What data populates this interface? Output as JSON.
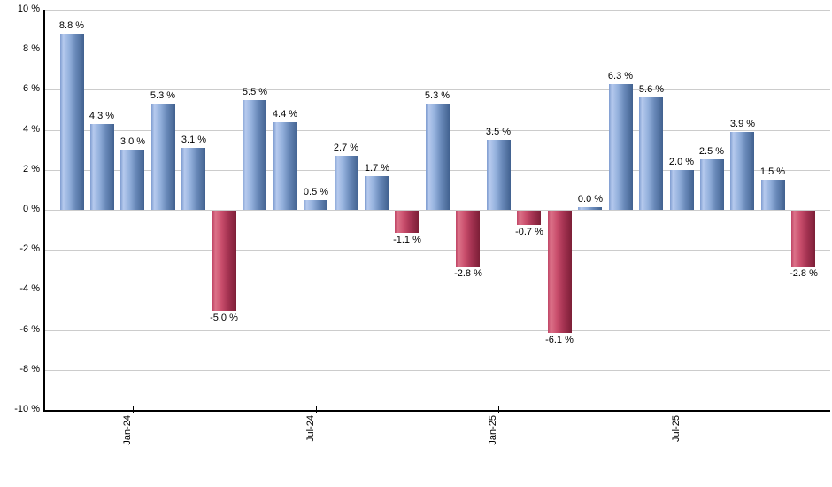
{
  "chart_data": {
    "type": "bar",
    "title": "",
    "xlabel": "",
    "ylabel": "",
    "ylim": [
      -10,
      10
    ],
    "y_tick_step": 2,
    "grid": true,
    "legend": false,
    "y_tick_labels": [
      "10 %",
      "8 %",
      "6 %",
      "4 %",
      "2 %",
      "0 %",
      "-2 %",
      "-4 %",
      "-6 %",
      "-8 %",
      "-10 %"
    ],
    "x_tick_labels": [
      {
        "label": "Jan-24",
        "bar_index": 2
      },
      {
        "label": "Jul-24",
        "bar_index": 8
      },
      {
        "label": "Jan-25",
        "bar_index": 14
      },
      {
        "label": "Jul-25",
        "bar_index": 20
      }
    ],
    "values": [
      8.8,
      4.3,
      3.0,
      5.3,
      3.1,
      -5.0,
      5.5,
      4.4,
      0.5,
      2.7,
      1.7,
      -1.1,
      5.3,
      -2.8,
      3.5,
      -0.7,
      -6.1,
      0.0,
      6.3,
      5.6,
      2.0,
      2.5,
      3.9,
      1.5,
      -2.8
    ],
    "bar_labels": [
      "8.8 %",
      "4.3 %",
      "3.0 %",
      "5.3 %",
      "3.1 %",
      "-5.0 %",
      "5.5 %",
      "4.4 %",
      "0.5 %",
      "2.7 %",
      "1.7 %",
      "-1.1 %",
      "5.3 %",
      "-2.8 %",
      "3.5 %",
      "-0.7 %",
      "-6.1 %",
      "0.0 %",
      "6.3 %",
      "5.6 %",
      "2.0 %",
      "2.5 %",
      "3.9 %",
      "1.5 %",
      "-2.8 %"
    ],
    "colors": {
      "positive_bar_gradient": [
        "#7e9cd0",
        "#b6caee",
        "#93b0dc",
        "#6888b8",
        "#41618f"
      ],
      "negative_bar_gradient": [
        "#bf4465",
        "#dc7289",
        "#c94e6c",
        "#a53352",
        "#7c1f37"
      ],
      "grid": "#cccccc",
      "axis": "#000000",
      "text": "#000000",
      "background": "#ffffff"
    }
  }
}
